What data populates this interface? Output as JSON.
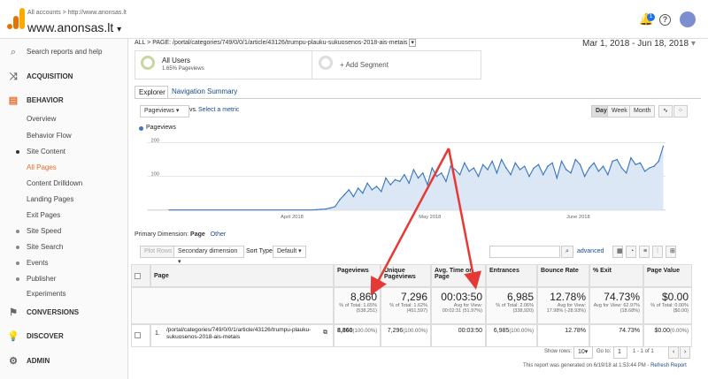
{
  "header": {
    "breadcrumb": "All accounts > http://www.anonsas.lt",
    "property": "www.anonsas.lt",
    "property_caret": "▾",
    "notif_count": "1"
  },
  "sidebar": {
    "search": "Search reports and help",
    "acquisition": "ACQUISITION",
    "behavior": "BEHAVIOR",
    "overview": "Overview",
    "behavior_flow": "Behavior Flow",
    "site_content": "Site Content",
    "all_pages": "All Pages",
    "content_drilldown": "Content Drilldown",
    "landing_pages": "Landing Pages",
    "exit_pages": "Exit Pages",
    "site_speed": "Site Speed",
    "site_search": "Site Search",
    "events": "Events",
    "publisher": "Publisher",
    "experiments": "Experiments",
    "conversions": "CONVERSIONS",
    "discover": "DISCOVER",
    "admin": "ADMIN"
  },
  "report": {
    "path_all": "ALL",
    "path_text": "PAGE: /portal/categories/749/0/0/1/article/43126/trumpu-plauku-sukuosenos-2018-ais-metais",
    "date_range": "Mar 1, 2018 - Jun 18, 2018",
    "segment_name": "All Users",
    "segment_pct": "1.65% Pageviews",
    "add_segment": "+ Add Segment",
    "tab_explorer": "Explorer",
    "tab_nav": "Navigation Summary",
    "metric": "Pageviews",
    "vs": "vs.",
    "select_metric": "Select a metric",
    "day": "Day",
    "week": "Week",
    "month": "Month",
    "legend": "Pageviews",
    "primary_dim_label": "Primary Dimension:",
    "primary_dim": "Page",
    "other": "Other",
    "plot_rows": "Plot Rows",
    "secondary_dim": "Secondary dimension",
    "sort_type_label": "Sort Type:",
    "sort_type": "Default",
    "advanced": "advanced"
  },
  "chart_data": {
    "type": "line",
    "ylim": [
      0,
      200
    ],
    "yticks": [
      "200",
      "100"
    ],
    "xticks": [
      "April 2018",
      "May 2018",
      "June 2018"
    ],
    "series": [
      {
        "name": "Pageviews",
        "values": [
          0,
          0,
          0,
          0,
          0,
          0,
          0,
          0,
          0,
          0,
          0,
          0,
          0,
          0,
          0,
          0,
          0,
          0,
          0,
          0,
          0,
          0,
          0,
          0,
          0,
          0,
          0,
          0,
          0,
          0,
          0,
          0,
          1,
          2,
          3,
          6,
          10,
          30,
          45,
          60,
          40,
          65,
          50,
          80,
          60,
          70,
          55,
          95,
          75,
          90,
          85,
          105,
          80,
          120,
          95,
          110,
          75,
          125,
          100,
          110,
          85,
          130,
          120,
          105,
          140,
          115,
          125,
          100,
          135,
          120,
          145,
          110,
          150,
          125,
          105,
          140,
          120,
          130,
          100,
          125,
          135,
          105,
          130,
          140,
          95,
          145,
          120,
          110,
          150,
          135,
          100,
          125,
          140,
          115,
          130,
          105,
          145,
          150,
          125,
          110,
          155,
          135,
          140,
          115,
          125,
          130,
          145,
          190
        ]
      }
    ]
  },
  "table": {
    "headers": {
      "page": "Page",
      "pageviews": "Pageviews",
      "unique": "Unique Pageviews",
      "avg_time": "Avg. Time on Page",
      "entrances": "Entrances",
      "bounce": "Bounce Rate",
      "exit": "% Exit",
      "value": "Page Value"
    },
    "totals": {
      "pageviews": "8,860",
      "pageviews_sub": "% of Total: 1.65% (538,251)",
      "unique": "7,296",
      "unique_sub": "% of Total: 1.62% (451,597)",
      "avg_time": "00:03:50",
      "avg_time_sub": "Avg for View: 00:02:31 (51.97%)",
      "entrances": "6,985",
      "entrances_sub": "% of Total: 2.06% (338,920)",
      "bounce": "12.78%",
      "bounce_sub": "Avg for View: 17.98% (-28.93%)",
      "exit": "74.73%",
      "exit_sub": "Avg for View: 62.97% (18.68%)",
      "value": "$0.00",
      "value_sub": "% of Total: 0.00% ($0.00)"
    },
    "row": {
      "index": "1.",
      "page": "/portal/categories/749/0/0/1/article/43126/trumpu-plauku-sukuosenos-2018-ais-metais",
      "pageviews": "8,860",
      "pageviews_pct": "(100.00%)",
      "unique": "7,296",
      "unique_pct": "(100.00%)",
      "avg_time": "00:03:50",
      "entrances": "6,985",
      "entrances_pct": "(100.00%)",
      "bounce": "12.78%",
      "exit": "74.73%",
      "value": "$0.00",
      "value_pct": "(0.00%)"
    }
  },
  "footer": {
    "show_rows": "Show rows:",
    "rows_val": "10",
    "goto": "Go to:",
    "goto_val": "1",
    "range": "1 - 1 of 1",
    "generated": "This report was generated on 6/19/18 at 1:53:44 PM -",
    "refresh": "Refresh Report"
  }
}
